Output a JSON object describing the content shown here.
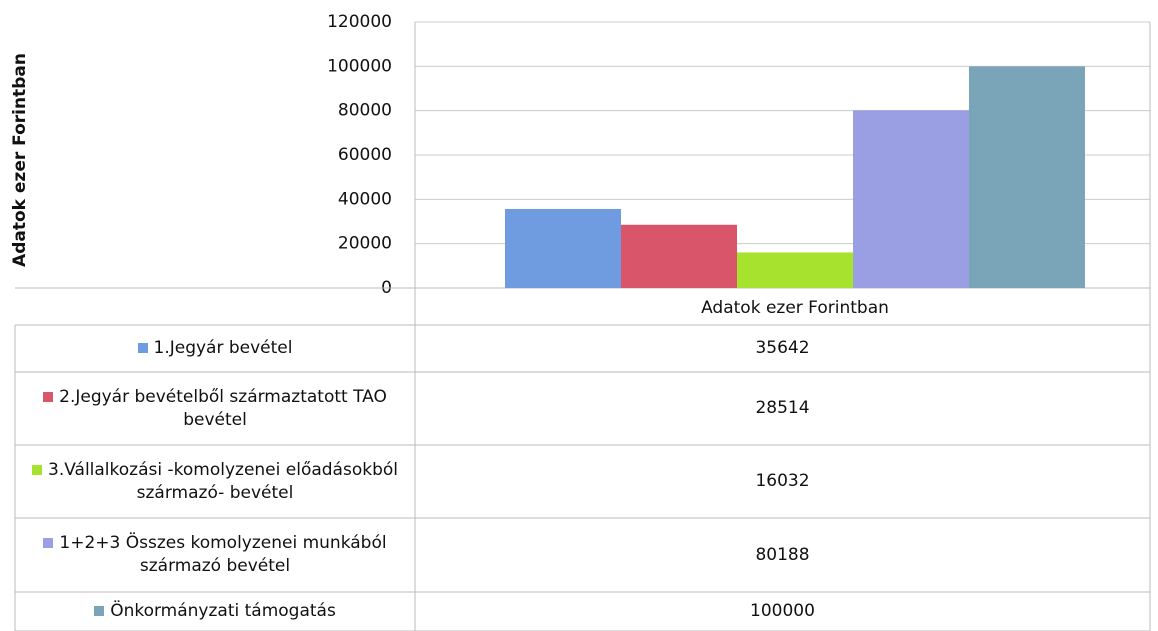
{
  "chart_data": {
    "type": "bar",
    "y_label": "Adatok ezer Forintban",
    "categories": [
      "Adatok ezer Forintban"
    ],
    "series": [
      {
        "name": "1.Jegyár bevétel",
        "color": "#6f9be0",
        "values": [
          35642
        ]
      },
      {
        "name": "2.Jegyár bevételből származtatott TAO bevétel",
        "color": "#d9566a",
        "values": [
          28514
        ]
      },
      {
        "name": "3.Vállalkozási -komolyzenei előadásokból származó- bevétel",
        "color": "#a6e22e",
        "values": [
          16032
        ]
      },
      {
        "name": "1+2+3 Összes komolyzenei munkából származó bevétel",
        "color": "#9a9ee2",
        "values": [
          80188
        ]
      },
      {
        "name": "Önkormányzati támogatás",
        "color": "#7aa5b8",
        "values": [
          100000
        ]
      }
    ],
    "ylim": [
      0,
      120000
    ],
    "yticks": [
      0,
      20000,
      40000,
      60000,
      80000,
      100000,
      120000
    ],
    "grid": true
  }
}
